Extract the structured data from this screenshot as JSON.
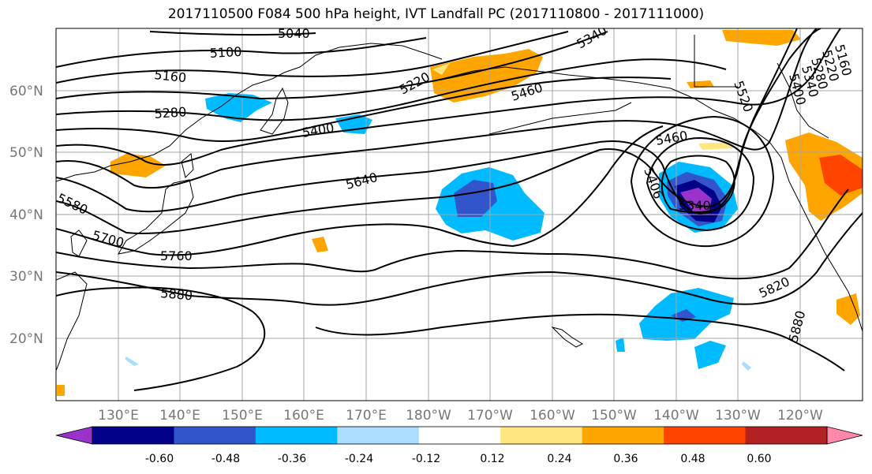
{
  "title": "2017110500 F084 500 hPa height, IVT Landfall PC (2017110800 - 2017111000)",
  "lat_labels": [
    "60°N",
    "50°N",
    "40°N",
    "30°N",
    "20°N"
  ],
  "lon_labels": [
    "130°E",
    "140°E",
    "150°E",
    "160°E",
    "170°E",
    "180°W",
    "170°W",
    "160°W",
    "150°W",
    "140°W",
    "130°W",
    "120°W"
  ],
  "contour_labels": [
    "5040",
    "5100",
    "5160",
    "5220",
    "5280",
    "5340",
    "5400",
    "5460",
    "5460",
    "5520",
    "5580",
    "5640",
    "5700",
    "5760",
    "5820",
    "5880",
    "5880",
    "5406",
    "5340",
    "5160",
    "5220",
    "5280",
    "5340",
    "5400"
  ],
  "colorbar": {
    "ticks": [
      "-0.60",
      "-0.48",
      "-0.36",
      "-0.24",
      "-0.12",
      "0.12",
      "0.24",
      "0.36",
      "0.48",
      "0.60"
    ],
    "colors": [
      "#9933cc",
      "#000088",
      "#3355cc",
      "#00bbff",
      "#aaddff",
      "#ffffff",
      "#ffe680",
      "#ffa500",
      "#ff4400",
      "#b22222",
      "#ff88aa"
    ]
  }
}
